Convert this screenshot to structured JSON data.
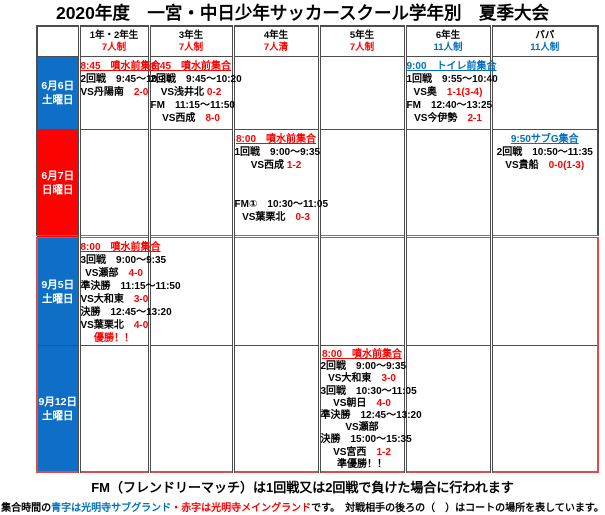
{
  "title": "2020年度　一宮・中日少年サッカースクール学年別　夏季大会",
  "colors": {
    "text_red": "#ff0000",
    "text_blue": "#0070c0",
    "date_bg_blue": "#0f6fc6",
    "date_bg_red": "#fd0202",
    "grid_border": "#4d4d4d",
    "september_border": "#e04a4a"
  },
  "table": {
    "columns": [
      {
        "grade": "1年・2年生",
        "format": "7人制",
        "format_color": "red"
      },
      {
        "grade": "3年生",
        "format": "7人制",
        "format_color": "red"
      },
      {
        "grade": "4年生",
        "format": "7人清",
        "format_color": "red"
      },
      {
        "grade": "5年生",
        "format": "7人制",
        "format_color": "red"
      },
      {
        "grade": "6年生",
        "format": "11人制",
        "format_color": "blue"
      },
      {
        "grade": "パパ",
        "format": "11人制",
        "format_color": "blue"
      }
    ],
    "rows": [
      {
        "date": "6月6日",
        "day": "土曜日",
        "date_bg": "blue",
        "section": "june",
        "cells": [
          {
            "lines": [
              [
                {
                  "t": "8:45　噴水前集合",
                  "c": "red",
                  "u": true
                }
              ],
              [
                {
                  "t": "2回戦　9:45～10:20"
                }
              ],
              [
                {
                  "t": "VS丹陽南　"
                },
                {
                  "t": "2-0",
                  "c": "red"
                }
              ]
            ]
          },
          {
            "lines": [
              [
                {
                  "t": "8:45　噴水前集合",
                  "c": "red",
                  "u": true
                }
              ],
              [
                {
                  "t": "2回戦　9:45～10:20"
                }
              ],
              [
                {
                  "t": "VS浅井北 "
                },
                {
                  "t": "0-2",
                  "c": "red"
                }
              ],
              [
                {
                  "t": "FM　11:15～11:50"
                }
              ],
              [
                {
                  "t": "VS西成　"
                },
                {
                  "t": "8-0",
                  "c": "red"
                }
              ]
            ]
          },
          {
            "lines": []
          },
          {
            "lines": []
          },
          {
            "lines": [
              [
                {
                  "t": "9:00　トイレ前集合",
                  "c": "blue",
                  "u": true
                }
              ],
              [
                {
                  "t": "1回戦　9:55～10:40"
                }
              ],
              [
                {
                  "t": "VS奥　"
                },
                {
                  "t": "1-1(3-4)",
                  "c": "red"
                }
              ],
              [
                {
                  "t": "FM　12:40～13:25"
                }
              ],
              [
                {
                  "t": "VS今伊勢　"
                },
                {
                  "t": "2-1",
                  "c": "red"
                }
              ]
            ]
          },
          {
            "lines": []
          }
        ]
      },
      {
        "date": "6月7日",
        "day": "日曜日",
        "date_bg": "red",
        "section": "june",
        "cells": [
          {
            "lines": []
          },
          {
            "lines": []
          },
          {
            "lines": [
              [
                {
                  "t": "8:00　噴水前集合",
                  "c": "red",
                  "u": true
                }
              ],
              [
                {
                  "t": "1回戦　9:00～9:35"
                }
              ],
              [
                {
                  "t": "VS西成 "
                },
                {
                  "t": "1-2",
                  "c": "red"
                }
              ],
              [],
              [],
              [
                {
                  "t": "FM①　10:30～11:05"
                }
              ],
              [
                {
                  "t": "VS葉栗北　"
                },
                {
                  "t": "0-3",
                  "c": "red"
                }
              ]
            ]
          },
          {
            "lines": []
          },
          {
            "lines": []
          },
          {
            "lines": [
              [
                {
                  "t": "9:50サブG集合",
                  "c": "blue",
                  "u": true
                }
              ],
              [
                {
                  "t": "2回戦　10:50～11:35"
                }
              ],
              [
                {
                  "t": "VS貴船　"
                },
                {
                  "t": "0-0(1-3)",
                  "c": "red"
                }
              ]
            ]
          }
        ]
      },
      {
        "date": "9月5日",
        "day": "土曜日",
        "date_bg": "blue",
        "section": "september",
        "cells": [
          {
            "lines": [
              [
                {
                  "t": "8:00　噴水前集合",
                  "c": "red",
                  "u": true
                }
              ],
              [
                {
                  "t": "3回戦　9:00～9:35"
                }
              ],
              [
                {
                  "t": "VS瀬部　"
                },
                {
                  "t": "4-0",
                  "c": "red"
                }
              ],
              [
                {
                  "t": "準決勝　11:15～11:50"
                }
              ],
              [
                {
                  "t": "VS大和東　"
                },
                {
                  "t": "3-0",
                  "c": "red"
                }
              ],
              [
                {
                  "t": "決勝　12:45～13:20"
                }
              ],
              [
                {
                  "t": "VS葉栗北　"
                },
                {
                  "t": "4-0",
                  "c": "red"
                }
              ],
              [
                {
                  "t": "優勝！！",
                  "c": "red"
                }
              ]
            ]
          },
          {
            "lines": []
          },
          {
            "lines": []
          },
          {
            "lines": []
          },
          {
            "lines": []
          },
          {
            "lines": []
          }
        ]
      },
      {
        "date": "9月12日",
        "day": "土曜日",
        "date_bg": "blue",
        "section": "september",
        "cells": [
          {
            "lines": []
          },
          {
            "lines": []
          },
          {
            "lines": []
          },
          {
            "lines": [
              [
                {
                  "t": "8:00　噴水前集合",
                  "c": "red",
                  "u": true
                }
              ],
              [
                {
                  "t": "2回戦　9:00～9:35"
                }
              ],
              [
                {
                  "t": "VS大和東　"
                },
                {
                  "t": "3-0",
                  "c": "red"
                }
              ],
              [
                {
                  "t": "3回戦　10:30～11:05"
                }
              ],
              [
                {
                  "t": "VS朝日　"
                },
                {
                  "t": "4-0",
                  "c": "red"
                }
              ],
              [
                {
                  "t": "準決勝　12:45～13:20"
                }
              ],
              [
                {
                  "t": "VS瀬部"
                }
              ],
              [
                {
                  "t": "決勝　15:00～15:35"
                }
              ],
              [
                {
                  "t": "VS宮西　"
                },
                {
                  "t": "1-2",
                  "c": "red"
                }
              ],
              [
                {
                  "t": "準優勝！！"
                }
              ]
            ]
          },
          {
            "lines": []
          },
          {
            "lines": []
          }
        ]
      }
    ]
  },
  "notes": {
    "fm_note": "FM（フレンドリーマッチ）は1回戦又は2回戦で負けた場合に行われます",
    "legend": [
      {
        "t": "集合時間の"
      },
      {
        "t": "青字は光明寺サブグランド",
        "c": "blue"
      },
      {
        "t": "・",
        "c": "red"
      },
      {
        "t": "赤字は光明寺メイングランド",
        "c": "red"
      },
      {
        "t": "です。　対戦相手の後ろの（　）はコートの場所を表しています。"
      }
    ]
  }
}
